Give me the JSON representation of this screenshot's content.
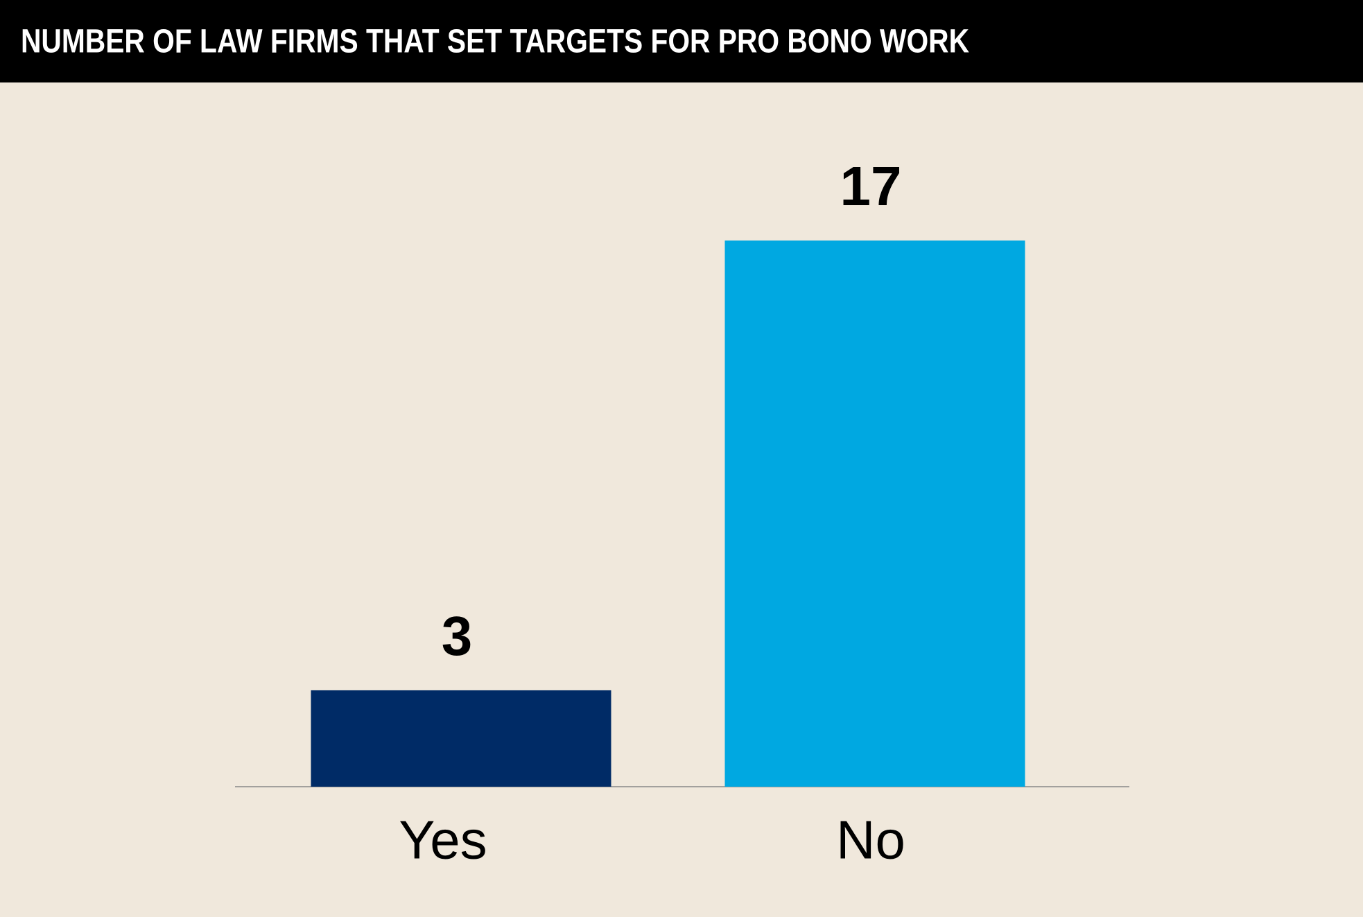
{
  "chart_data": {
    "type": "bar",
    "title": "NUMBER OF LAW FIRMS THAT SET TARGETS FOR PRO BONO WORK",
    "categories": [
      "Yes",
      "No"
    ],
    "values": [
      3,
      17
    ],
    "colors": [
      "#002b66",
      "#00a8e1"
    ]
  }
}
